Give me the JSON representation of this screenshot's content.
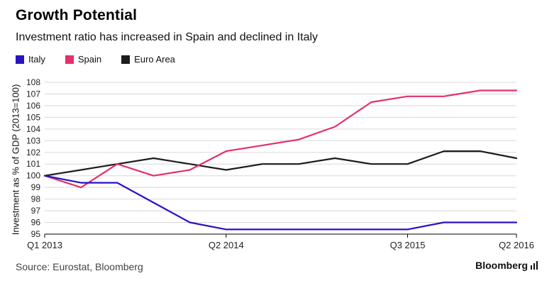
{
  "header": {
    "title": "Growth Potential",
    "subtitle": "Investment ratio has increased in Spain and declined in Italy"
  },
  "footer": {
    "source": "Source: Eurostat, Bloomberg",
    "brand": "Bloomberg"
  },
  "colors": {
    "italy": "#2a12c4",
    "spain": "#e3306a",
    "euro_area": "#1c1c1c",
    "grid": "#d8d8d8",
    "axis_text": "#222222"
  },
  "chart_data": {
    "type": "line",
    "title": "Growth Potential",
    "subtitle": "Investment ratio has increased in Spain and declined in Italy",
    "xlabel": "",
    "ylabel": "Investment as % of GDP (2013=100)",
    "ylim": [
      95,
      108
    ],
    "yticks": [
      95,
      96,
      97,
      98,
      99,
      100,
      101,
      102,
      103,
      104,
      105,
      106,
      107,
      108
    ],
    "categories": [
      "Q1 2013",
      "Q2 2013",
      "Q3 2013",
      "Q4 2013",
      "Q1 2014",
      "Q2 2014",
      "Q3 2014",
      "Q4 2014",
      "Q1 2015",
      "Q2 2015",
      "Q3 2015",
      "Q4 2015",
      "Q1 2016",
      "Q2 2016"
    ],
    "xtick_labels": [
      {
        "index": 0,
        "label": "Q1 2013"
      },
      {
        "index": 5,
        "label": "Q2 2014"
      },
      {
        "index": 10,
        "label": "Q3 2015"
      },
      {
        "index": 13,
        "label": "Q2 2016"
      }
    ],
    "grid": true,
    "legend_position": "top-left",
    "series": [
      {
        "name": "Italy",
        "color": "#2a12c4",
        "values": [
          100,
          99.4,
          99.4,
          97.7,
          96.0,
          95.4,
          95.4,
          95.4,
          95.4,
          95.4,
          95.4,
          96.0,
          96.0,
          96.0
        ]
      },
      {
        "name": "Spain",
        "color": "#e3306a",
        "values": [
          100,
          99.0,
          101.0,
          100.0,
          100.5,
          102.1,
          102.6,
          103.1,
          104.2,
          106.3,
          106.8,
          106.8,
          107.3,
          107.3
        ]
      },
      {
        "name": "Euro Area",
        "color": "#1c1c1c",
        "values": [
          100,
          100.5,
          101.0,
          101.5,
          101.0,
          100.5,
          101.0,
          101.0,
          101.5,
          101.0,
          101.0,
          102.1,
          102.1,
          101.5
        ]
      }
    ]
  }
}
